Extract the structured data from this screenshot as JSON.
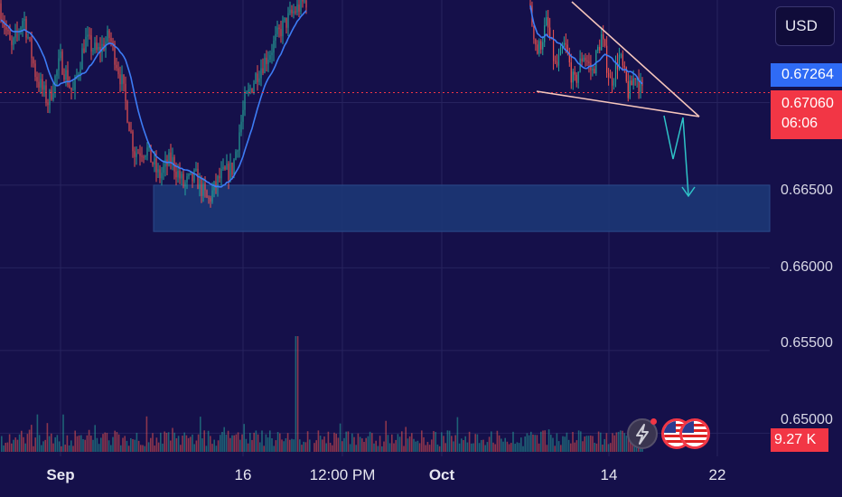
{
  "currency": "USD",
  "price_tags": {
    "moving_average": "0.67264",
    "last_price": "0.67060",
    "countdown": "06:06",
    "volume": "9.27 K"
  },
  "colors": {
    "background": "#15104a",
    "up": "#26a69a",
    "down": "#ef5350",
    "moving_average": "#3d7cf5",
    "zone": "#1c3a78",
    "wedge": "#f6c6bc",
    "arrow": "#2fc4c8",
    "last_price_line": "#f23645"
  },
  "icons": [
    "lightning-icon",
    "us-flag-icon",
    "us-flag-icon"
  ],
  "chart_data": {
    "type": "candlestick",
    "y_ticks": [
      "0.66500",
      "0.66000",
      "0.65500",
      "0.65000"
    ],
    "x_ticks": [
      {
        "label": "Sep",
        "bold": true
      },
      {
        "label": "16",
        "bold": false
      },
      {
        "label": "12:00 PM",
        "bold": false
      },
      {
        "label": "Oct",
        "bold": true
      },
      {
        "label": "14",
        "bold": false
      },
      {
        "label": "22",
        "bold": false
      }
    ],
    "ylim": [
      0.6486,
      0.6762
    ],
    "grid": true,
    "last_price": 0.6706,
    "moving_average_last": 0.67264,
    "support_zone": [
      0.6622,
      0.665
    ],
    "segment_1_path": [
      [
        0,
        0.676
      ],
      [
        0.04,
        0.6732
      ],
      [
        0.08,
        0.6752
      ],
      [
        0.12,
        0.6716
      ],
      [
        0.16,
        0.67
      ],
      [
        0.2,
        0.6726
      ],
      [
        0.24,
        0.6705
      ],
      [
        0.28,
        0.6738
      ],
      [
        0.32,
        0.673
      ],
      [
        0.36,
        0.674
      ],
      [
        0.4,
        0.6712
      ],
      [
        0.44,
        0.667
      ],
      [
        0.48,
        0.6672
      ],
      [
        0.52,
        0.6655
      ],
      [
        0.56,
        0.6666
      ],
      [
        0.6,
        0.665
      ],
      [
        0.64,
        0.6655
      ],
      [
        0.68,
        0.664
      ],
      [
        0.72,
        0.6655
      ],
      [
        0.76,
        0.666
      ],
      [
        0.8,
        0.67
      ],
      [
        0.84,
        0.6718
      ],
      [
        0.88,
        0.673
      ],
      [
        0.92,
        0.6745
      ],
      [
        0.96,
        0.6755
      ],
      [
        1.0,
        0.6762
      ]
    ],
    "segment_2_path": [
      [
        0,
        0.676
      ],
      [
        0.08,
        0.673
      ],
      [
        0.16,
        0.6748
      ],
      [
        0.24,
        0.672
      ],
      [
        0.32,
        0.6735
      ],
      [
        0.4,
        0.671
      ],
      [
        0.48,
        0.673
      ],
      [
        0.56,
        0.6718
      ],
      [
        0.64,
        0.674
      ],
      [
        0.72,
        0.6712
      ],
      [
        0.8,
        0.6728
      ],
      [
        0.88,
        0.6705
      ],
      [
        0.94,
        0.6718
      ],
      [
        1.0,
        0.6706
      ]
    ]
  }
}
